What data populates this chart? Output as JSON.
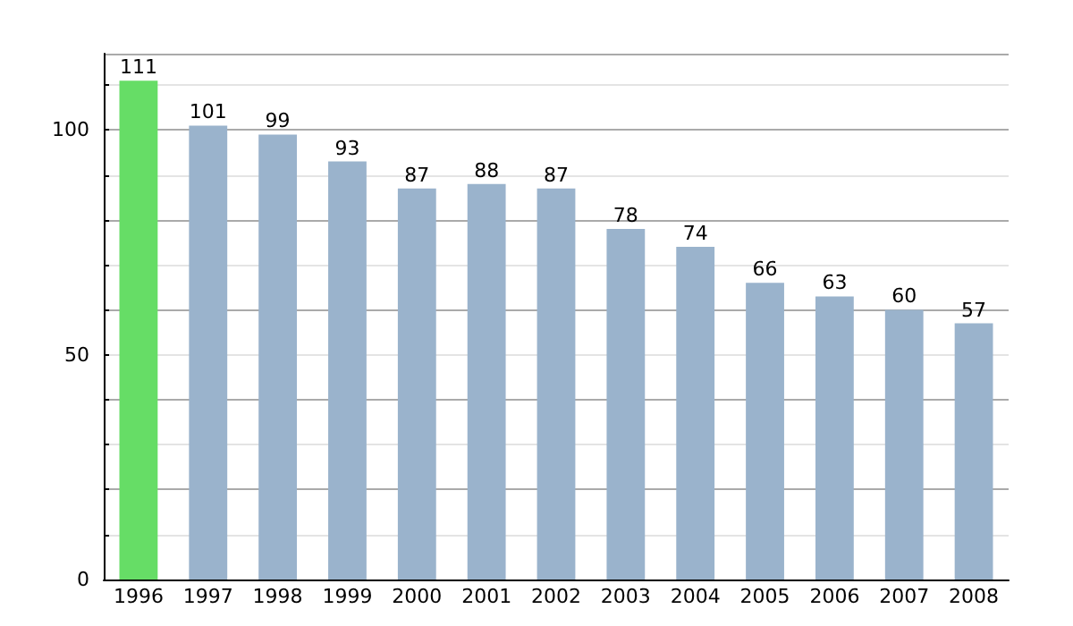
{
  "chart_data": {
    "type": "bar",
    "categories": [
      "1996",
      "1997",
      "1998",
      "1999",
      "2000",
      "2001",
      "2002",
      "2003",
      "2004",
      "2005",
      "2006",
      "2007",
      "2008"
    ],
    "values": [
      111,
      101,
      99,
      93,
      87,
      88,
      87,
      78,
      74,
      66,
      63,
      60,
      57
    ],
    "colors": [
      "#66dd66",
      "#9ab3cc",
      "#9ab3cc",
      "#9ab3cc",
      "#9ab3cc",
      "#9ab3cc",
      "#9ab3cc",
      "#9ab3cc",
      "#9ab3cc",
      "#9ab3cc",
      "#9ab3cc",
      "#9ab3cc",
      "#9ab3cc"
    ],
    "ylim": [
      0,
      117
    ],
    "yticks": [
      0,
      {
        "value": 10,
        "label": null
      },
      {
        "value": 20,
        "label": null
      },
      {
        "value": 30,
        "label": null
      },
      {
        "value": 40,
        "label": null
      },
      50,
      {
        "value": 60,
        "label": null
      },
      {
        "value": 70,
        "label": null
      },
      {
        "value": 80,
        "label": null
      },
      {
        "value": 90,
        "label": null
      },
      100,
      {
        "value": 110,
        "label": null
      }
    ],
    "grid": true,
    "data_labels": true
  }
}
